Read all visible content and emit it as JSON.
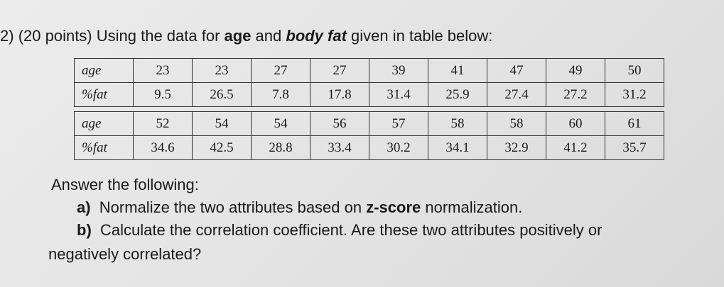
{
  "question": {
    "number": "2)",
    "intro_pre": "(20 points) Using the data for ",
    "bold1": "age",
    "mid": " and ",
    "bold2": "body fat",
    "intro_post": " given in table below:"
  },
  "tables": [
    {
      "row_labels": [
        "age",
        "%fat"
      ],
      "age": [
        "23",
        "23",
        "27",
        "27",
        "39",
        "41",
        "47",
        "49",
        "50"
      ],
      "fat": [
        "9.5",
        "26.5",
        "7.8",
        "17.8",
        "31.4",
        "25.9",
        "27.4",
        "27.2",
        "31.2"
      ]
    },
    {
      "row_labels": [
        "age",
        "%fat"
      ],
      "age": [
        "52",
        "54",
        "54",
        "56",
        "57",
        "58",
        "58",
        "60",
        "61"
      ],
      "fat": [
        "34.6",
        "42.5",
        "28.8",
        "33.4",
        "30.2",
        "34.1",
        "32.9",
        "41.2",
        "35.7"
      ]
    }
  ],
  "answer": {
    "heading": "Answer the following:",
    "a_label": "a)",
    "a_pre": "Normalize the two attributes based on ",
    "a_bold": "z-score",
    "a_post": " normalization.",
    "b_label": "b)",
    "b_text": "Calculate the correlation coefficient. Are these two attributes positively or",
    "b_cont": "negatively correlated?"
  }
}
